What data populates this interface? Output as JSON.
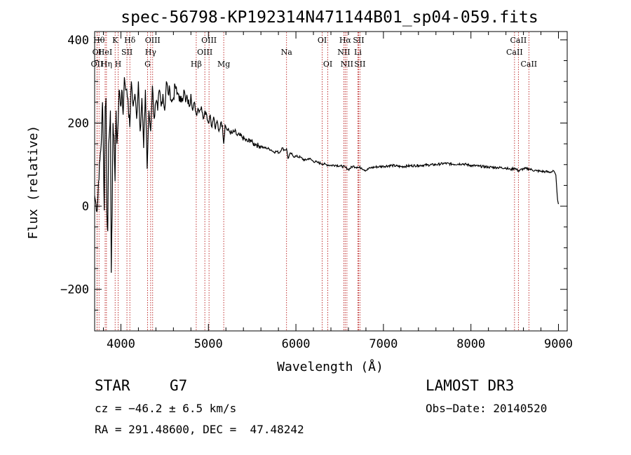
{
  "chart_data": {
    "type": "line",
    "title": "spec-56798-KP192314N471144B01_sp04-059.fits",
    "xlabel": "Wavelength (Å)",
    "ylabel": "Flux (relative)",
    "xlim": [
      3700,
      9100
    ],
    "ylim": [
      -300,
      420
    ],
    "x_ticks": [
      4000,
      5000,
      6000,
      7000,
      8000,
      9000
    ],
    "y_ticks": [
      -200,
      0,
      200,
      400
    ],
    "series": [
      {
        "name": "flux",
        "x": [
          3700,
          3715,
          3730,
          3745,
          3760,
          3775,
          3790,
          3800,
          3810,
          3820,
          3830,
          3840,
          3850,
          3860,
          3870,
          3880,
          3890,
          3900,
          3910,
          3920,
          3933,
          3945,
          3955,
          3968,
          3980,
          3990,
          4000,
          4010,
          4025,
          4040,
          4060,
          4080,
          4101,
          4120,
          4140,
          4160,
          4180,
          4200,
          4220,
          4240,
          4260,
          4280,
          4300,
          4320,
          4340,
          4360,
          4380,
          4400,
          4420,
          4440,
          4460,
          4480,
          4500,
          4520,
          4540,
          4560,
          4580,
          4600,
          4620,
          4640,
          4660,
          4680,
          4700,
          4720,
          4740,
          4760,
          4780,
          4800,
          4820,
          4840,
          4861,
          4880,
          4900,
          4920,
          4940,
          4960,
          4980,
          5000,
          5020,
          5040,
          5060,
          5080,
          5100,
          5120,
          5140,
          5160,
          5175,
          5190,
          5210,
          5240,
          5270,
          5300,
          5330,
          5360,
          5390,
          5420,
          5450,
          5480,
          5510,
          5540,
          5570,
          5600,
          5630,
          5660,
          5690,
          5720,
          5750,
          5780,
          5810,
          5840,
          5870,
          5893,
          5910,
          5940,
          5970,
          6000,
          6050,
          6100,
          6150,
          6200,
          6250,
          6300,
          6350,
          6400,
          6450,
          6500,
          6563,
          6600,
          6650,
          6700,
          6750,
          6800,
          6850,
          6900,
          6950,
          7000,
          7100,
          7200,
          7300,
          7400,
          7500,
          7600,
          7700,
          7800,
          7900,
          8000,
          8100,
          8200,
          8300,
          8400,
          8450,
          8498,
          8542,
          8600,
          8662,
          8700,
          8750,
          8800,
          8850,
          8900,
          8950,
          8960,
          8970,
          8980,
          8990,
          9000
        ],
        "values": [
          25,
          5,
          -10,
          60,
          110,
          150,
          250,
          130,
          -10,
          240,
          260,
          -20,
          -60,
          150,
          180,
          230,
          -160,
          -20,
          200,
          170,
          60,
          230,
          150,
          200,
          280,
          260,
          240,
          280,
          220,
          310,
          280,
          260,
          190,
          300,
          240,
          270,
          210,
          300,
          180,
          260,
          140,
          280,
          90,
          230,
          180,
          290,
          210,
          250,
          230,
          280,
          240,
          270,
          230,
          300,
          270,
          280,
          250,
          260,
          290,
          270,
          270,
          250,
          260,
          280,
          250,
          260,
          240,
          270,
          230,
          250,
          220,
          235,
          230,
          240,
          210,
          230,
          220,
          200,
          220,
          190,
          215,
          185,
          205,
          180,
          200,
          195,
          150,
          195,
          185,
          180,
          175,
          180,
          170,
          170,
          165,
          160,
          155,
          160,
          150,
          150,
          145,
          145,
          140,
          140,
          138,
          135,
          130,
          132,
          128,
          140,
          135,
          138,
          115,
          128,
          120,
          120,
          118,
          110,
          115,
          108,
          105,
          102,
          100,
          98,
          99,
          97,
          94,
          88,
          96,
          94,
          92,
          86,
          92,
          94,
          95,
          96,
          98,
          95,
          97,
          98,
          99,
          100,
          103,
          101,
          102,
          98,
          96,
          94,
          93,
          92,
          88,
          92,
          85,
          90,
          90,
          87,
          85,
          84,
          83,
          82,
          84,
          80,
          75,
          45,
          15,
          5
        ]
      }
    ],
    "lines": [
      {
        "name": "OI",
        "wavelength": 3727,
        "row": 2
      },
      {
        "name": "OII",
        "wavelength": 3727,
        "row": 3
      },
      {
        "name": "Hθ",
        "wavelength": 3750,
        "row": 1
      },
      {
        "name": "HeI",
        "wavelength": 3820,
        "row": 2
      },
      {
        "name": "Hη",
        "wavelength": 3835,
        "row": 3
      },
      {
        "name": "K",
        "wavelength": 3934,
        "row": 1
      },
      {
        "name": "SII",
        "wavelength": 4069,
        "row": 2
      },
      {
        "name": "H",
        "wavelength": 3968,
        "row": 3
      },
      {
        "name": "Hδ",
        "wavelength": 4102,
        "row": 1
      },
      {
        "name": "OIII",
        "wavelength": 4363,
        "row": 1
      },
      {
        "name": "Hγ",
        "wavelength": 4340,
        "row": 2
      },
      {
        "name": "G",
        "wavelength": 4305,
        "row": 3
      },
      {
        "name": "Hβ",
        "wavelength": 4861,
        "row": 3
      },
      {
        "name": "OIII",
        "wavelength": 5007,
        "row": 1
      },
      {
        "name": "OIII",
        "wavelength": 4959,
        "row": 2
      },
      {
        "name": "Mg",
        "wavelength": 5175,
        "row": 3
      },
      {
        "name": "Na",
        "wavelength": 5893,
        "row": 2
      },
      {
        "name": "OI",
        "wavelength": 6300,
        "row": 1
      },
      {
        "name": "OI",
        "wavelength": 6364,
        "row": 3
      },
      {
        "name": "Hα",
        "wavelength": 6563,
        "row": 1
      },
      {
        "name": "NII",
        "wavelength": 6548,
        "row": 2
      },
      {
        "name": "NII",
        "wavelength": 6583,
        "row": 3
      },
      {
        "name": "SII",
        "wavelength": 6716,
        "row": 1
      },
      {
        "name": "Li",
        "wavelength": 6708,
        "row": 2
      },
      {
        "name": "SII",
        "wavelength": 6731,
        "row": 3
      },
      {
        "name": "CaII",
        "wavelength": 8542,
        "row": 1
      },
      {
        "name": "CaII",
        "wavelength": 8498,
        "row": 2
      },
      {
        "name": "CaII",
        "wavelength": 8662,
        "row": 3
      }
    ],
    "colors": {
      "spectrum": "#000000",
      "line_markers": "#b00000"
    }
  },
  "info": {
    "class": "STAR",
    "subclass": "G7",
    "survey": "LAMOST DR3",
    "redshift": "cz = −46.2 ± 6.5 km/s",
    "obs_date": "Obs−Date: 20140520",
    "coords": "RA = 291.48600, DEC =  47.48242"
  }
}
